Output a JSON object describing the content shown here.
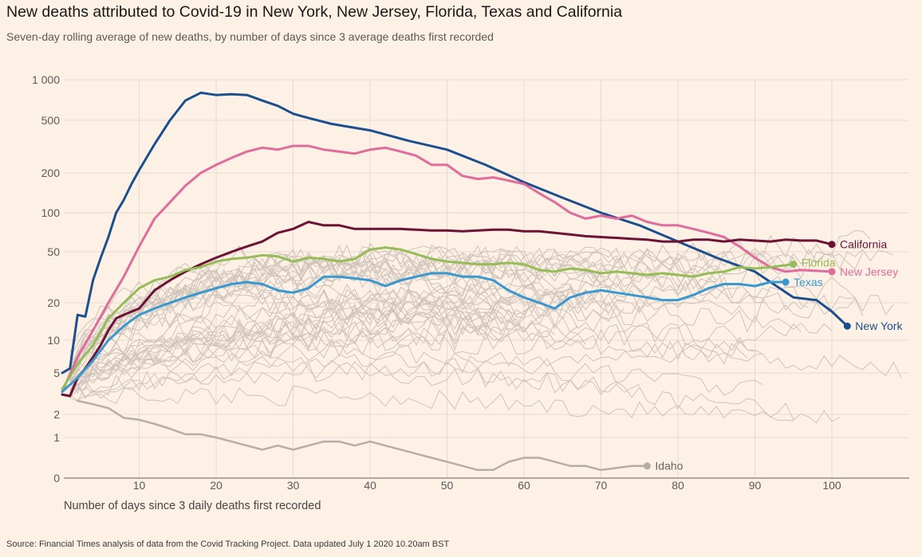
{
  "header": {
    "title": "New deaths attributed to Covid-19 in New York, New Jersey, Florida, Texas and California",
    "subtitle": "Seven-day rolling average of new deaths, by number of days since 3 average deaths first recorded"
  },
  "footer": {
    "source": "Source: Financial Times analysis of data from the Covid Tracking Project. Data updated July 1 2020 10.20am BST"
  },
  "chart_data": {
    "type": "line",
    "title": "New deaths attributed to Covid-19 in New York, New Jersey, Florida, Texas and California",
    "xlabel": "Number of days since 3 daily deaths first recorded",
    "ylabel": "",
    "yscale": "log",
    "xlim": [
      0,
      110
    ],
    "ylim": [
      0,
      1000
    ],
    "x_ticks": [
      10,
      20,
      30,
      40,
      50,
      60,
      70,
      80,
      90,
      100
    ],
    "y_ticks": [
      {
        "value": 1000,
        "label": "1 000"
      },
      {
        "value": 500,
        "label": "500"
      },
      {
        "value": 200,
        "label": "200"
      },
      {
        "value": 100,
        "label": "100"
      },
      {
        "value": 50,
        "label": "50"
      },
      {
        "value": 20,
        "label": "20"
      },
      {
        "value": 10,
        "label": "10"
      },
      {
        "value": 5,
        "label": "5"
      },
      {
        "value": 2,
        "label": "2"
      },
      {
        "value": 1,
        "label": "1"
      },
      {
        "value": 0,
        "label": "0"
      }
    ],
    "grid": true,
    "legend": "direct labels at line ends",
    "series": [
      {
        "name": "New York",
        "color": "#1c4f8e",
        "highlight": true,
        "points": [
          [
            0,
            5
          ],
          [
            1,
            5.5
          ],
          [
            2,
            16
          ],
          [
            3,
            15.5
          ],
          [
            4,
            30
          ],
          [
            5,
            45
          ],
          [
            6,
            65
          ],
          [
            7,
            100
          ],
          [
            8,
            125
          ],
          [
            9,
            165
          ],
          [
            10,
            210
          ],
          [
            12,
            330
          ],
          [
            14,
            500
          ],
          [
            16,
            700
          ],
          [
            18,
            800
          ],
          [
            20,
            770
          ],
          [
            22,
            780
          ],
          [
            24,
            770
          ],
          [
            26,
            700
          ],
          [
            28,
            640
          ],
          [
            30,
            560
          ],
          [
            32,
            520
          ],
          [
            35,
            470
          ],
          [
            40,
            420
          ],
          [
            45,
            350
          ],
          [
            50,
            300
          ],
          [
            55,
            230
          ],
          [
            60,
            170
          ],
          [
            65,
            130
          ],
          [
            70,
            100
          ],
          [
            75,
            80
          ],
          [
            80,
            60
          ],
          [
            85,
            45
          ],
          [
            90,
            35
          ],
          [
            95,
            22
          ],
          [
            98,
            21
          ],
          [
            100,
            17
          ],
          [
            102,
            13
          ]
        ]
      },
      {
        "name": "New Jersey",
        "color": "#e16b9b",
        "highlight": true,
        "points": [
          [
            0,
            3.3
          ],
          [
            2,
            7
          ],
          [
            4,
            12
          ],
          [
            6,
            20
          ],
          [
            8,
            32
          ],
          [
            10,
            55
          ],
          [
            12,
            90
          ],
          [
            14,
            120
          ],
          [
            16,
            160
          ],
          [
            18,
            200
          ],
          [
            20,
            230
          ],
          [
            22,
            260
          ],
          [
            24,
            290
          ],
          [
            26,
            310
          ],
          [
            28,
            300
          ],
          [
            30,
            320
          ],
          [
            32,
            320
          ],
          [
            34,
            300
          ],
          [
            36,
            290
          ],
          [
            38,
            280
          ],
          [
            40,
            300
          ],
          [
            42,
            310
          ],
          [
            44,
            290
          ],
          [
            46,
            270
          ],
          [
            48,
            230
          ],
          [
            50,
            230
          ],
          [
            52,
            190
          ],
          [
            54,
            180
          ],
          [
            56,
            185
          ],
          [
            58,
            175
          ],
          [
            60,
            165
          ],
          [
            62,
            140
          ],
          [
            64,
            120
          ],
          [
            66,
            100
          ],
          [
            68,
            90
          ],
          [
            70,
            95
          ],
          [
            72,
            90
          ],
          [
            74,
            95
          ],
          [
            76,
            85
          ],
          [
            78,
            80
          ],
          [
            80,
            80
          ],
          [
            82,
            75
          ],
          [
            84,
            70
          ],
          [
            86,
            65
          ],
          [
            88,
            55
          ],
          [
            90,
            45
          ],
          [
            92,
            38
          ],
          [
            94,
            35
          ],
          [
            96,
            36
          ],
          [
            100,
            35
          ]
        ]
      },
      {
        "name": "California",
        "color": "#6e1235",
        "highlight": true,
        "points": [
          [
            0,
            3.1
          ],
          [
            1,
            3
          ],
          [
            2,
            4.5
          ],
          [
            3,
            5.5
          ],
          [
            4,
            7
          ],
          [
            5,
            9
          ],
          [
            6,
            12
          ],
          [
            7,
            15
          ],
          [
            8,
            16
          ],
          [
            9,
            17
          ],
          [
            10,
            18
          ],
          [
            12,
            25
          ],
          [
            14,
            30
          ],
          [
            16,
            35
          ],
          [
            18,
            40
          ],
          [
            20,
            45
          ],
          [
            22,
            50
          ],
          [
            24,
            55
          ],
          [
            26,
            60
          ],
          [
            28,
            70
          ],
          [
            30,
            75
          ],
          [
            32,
            85
          ],
          [
            34,
            80
          ],
          [
            36,
            80
          ],
          [
            38,
            75
          ],
          [
            40,
            75
          ],
          [
            42,
            75
          ],
          [
            44,
            75
          ],
          [
            46,
            74
          ],
          [
            48,
            73
          ],
          [
            50,
            73
          ],
          [
            52,
            72
          ],
          [
            54,
            73
          ],
          [
            56,
            74
          ],
          [
            58,
            74
          ],
          [
            60,
            72
          ],
          [
            62,
            72
          ],
          [
            64,
            70
          ],
          [
            66,
            68
          ],
          [
            68,
            66
          ],
          [
            70,
            65
          ],
          [
            72,
            64
          ],
          [
            74,
            63
          ],
          [
            76,
            62
          ],
          [
            78,
            60
          ],
          [
            80,
            60
          ],
          [
            82,
            62
          ],
          [
            84,
            62
          ],
          [
            86,
            60
          ],
          [
            88,
            62
          ],
          [
            90,
            61
          ],
          [
            92,
            60
          ],
          [
            94,
            62
          ],
          [
            96,
            61
          ],
          [
            98,
            61
          ],
          [
            100,
            57
          ]
        ]
      },
      {
        "name": "Florida",
        "color": "#96bc57",
        "highlight": true,
        "points": [
          [
            0,
            3.5
          ],
          [
            2,
            6
          ],
          [
            4,
            9
          ],
          [
            6,
            15
          ],
          [
            8,
            20
          ],
          [
            10,
            26
          ],
          [
            12,
            30
          ],
          [
            14,
            32
          ],
          [
            16,
            36
          ],
          [
            18,
            38
          ],
          [
            20,
            42
          ],
          [
            22,
            44
          ],
          [
            24,
            45
          ],
          [
            26,
            47
          ],
          [
            28,
            46
          ],
          [
            30,
            42
          ],
          [
            32,
            45
          ],
          [
            34,
            44
          ],
          [
            36,
            42
          ],
          [
            38,
            44
          ],
          [
            40,
            52
          ],
          [
            42,
            54
          ],
          [
            44,
            52
          ],
          [
            46,
            48
          ],
          [
            48,
            44
          ],
          [
            50,
            42
          ],
          [
            52,
            41
          ],
          [
            54,
            40
          ],
          [
            56,
            40
          ],
          [
            58,
            41
          ],
          [
            60,
            40
          ],
          [
            62,
            36
          ],
          [
            64,
            35
          ],
          [
            66,
            37
          ],
          [
            68,
            36
          ],
          [
            70,
            34
          ],
          [
            72,
            35
          ],
          [
            74,
            34
          ],
          [
            76,
            33
          ],
          [
            78,
            34
          ],
          [
            80,
            33
          ],
          [
            82,
            32
          ],
          [
            84,
            34
          ],
          [
            86,
            35
          ],
          [
            88,
            38
          ],
          [
            90,
            37
          ],
          [
            92,
            38
          ],
          [
            95,
            40
          ]
        ]
      },
      {
        "name": "Texas",
        "color": "#3a98d1",
        "highlight": true,
        "points": [
          [
            0,
            3.3
          ],
          [
            2,
            4.5
          ],
          [
            4,
            6.5
          ],
          [
            6,
            10
          ],
          [
            8,
            13
          ],
          [
            10,
            16
          ],
          [
            12,
            18
          ],
          [
            14,
            20
          ],
          [
            16,
            22
          ],
          [
            18,
            24
          ],
          [
            20,
            26
          ],
          [
            22,
            28
          ],
          [
            24,
            29
          ],
          [
            26,
            28
          ],
          [
            28,
            25
          ],
          [
            30,
            24
          ],
          [
            32,
            26
          ],
          [
            34,
            32
          ],
          [
            36,
            32
          ],
          [
            38,
            31
          ],
          [
            40,
            30
          ],
          [
            42,
            27
          ],
          [
            44,
            30
          ],
          [
            46,
            32
          ],
          [
            48,
            34
          ],
          [
            50,
            34
          ],
          [
            52,
            32
          ],
          [
            54,
            32
          ],
          [
            56,
            30
          ],
          [
            58,
            25
          ],
          [
            60,
            22
          ],
          [
            62,
            20
          ],
          [
            64,
            18
          ],
          [
            66,
            22
          ],
          [
            68,
            24
          ],
          [
            70,
            25
          ],
          [
            72,
            24
          ],
          [
            74,
            23
          ],
          [
            76,
            22
          ],
          [
            78,
            21
          ],
          [
            80,
            21
          ],
          [
            82,
            23
          ],
          [
            84,
            26
          ],
          [
            86,
            28
          ],
          [
            88,
            28
          ],
          [
            90,
            27
          ],
          [
            92,
            29
          ],
          [
            94,
            29
          ]
        ]
      },
      {
        "name": "Idaho",
        "color": "#b8ada5",
        "highlight": false,
        "points": [
          [
            2,
            2.7
          ],
          [
            4,
            2.5
          ],
          [
            6,
            2.3
          ],
          [
            8,
            1.8
          ],
          [
            10,
            1.7
          ],
          [
            12,
            1.5
          ],
          [
            14,
            1.3
          ],
          [
            16,
            1.1
          ],
          [
            18,
            1.1
          ],
          [
            20,
            1
          ],
          [
            22,
            0.9
          ],
          [
            24,
            0.8
          ],
          [
            26,
            0.7
          ],
          [
            28,
            0.8
          ],
          [
            30,
            0.7
          ],
          [
            32,
            0.8
          ],
          [
            34,
            0.9
          ],
          [
            36,
            0.9
          ],
          [
            38,
            0.8
          ],
          [
            40,
            0.9
          ],
          [
            42,
            0.8
          ],
          [
            44,
            0.7
          ],
          [
            46,
            0.6
          ],
          [
            48,
            0.5
          ],
          [
            50,
            0.4
          ],
          [
            52,
            0.3
          ],
          [
            54,
            0.2
          ],
          [
            56,
            0.2
          ],
          [
            58,
            0.4
          ],
          [
            60,
            0.5
          ],
          [
            62,
            0.5
          ],
          [
            64,
            0.4
          ],
          [
            66,
            0.3
          ],
          [
            68,
            0.3
          ],
          [
            70,
            0.2
          ],
          [
            72,
            0.25
          ],
          [
            74,
            0.3
          ],
          [
            76,
            0.3
          ]
        ]
      }
    ]
  }
}
